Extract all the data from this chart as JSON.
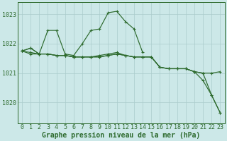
{
  "background_color": "#cce8e8",
  "grid_color": "#aacccc",
  "line_color": "#2d6a2d",
  "xlabel": "Graphe pression niveau de la mer (hPa)",
  "xlabel_fontsize": 7,
  "tick_fontsize": 6,
  "ytick_labels": [
    1020,
    1021,
    1022,
    1023
  ],
  "ylim": [
    1019.3,
    1023.4
  ],
  "xlim": [
    -0.5,
    23.5
  ],
  "xtick_labels": [
    0,
    1,
    2,
    3,
    4,
    5,
    6,
    7,
    8,
    9,
    10,
    11,
    12,
    13,
    14,
    15,
    16,
    17,
    18,
    19,
    20,
    21,
    22,
    23
  ],
  "lineA_x": [
    0,
    1,
    2,
    3,
    4,
    5,
    6,
    7,
    8,
    9,
    10,
    11,
    12,
    13,
    14
  ],
  "lineA_y": [
    1021.75,
    1021.85,
    1021.65,
    1022.45,
    1022.45,
    1021.65,
    1021.6,
    1022.0,
    1022.45,
    1022.5,
    1023.05,
    1023.1,
    1022.75,
    1022.5,
    1021.7
  ],
  "lineB_x": [
    0,
    1,
    2,
    3,
    4,
    5,
    6,
    7,
    8,
    9,
    10,
    11,
    12,
    13,
    14,
    15,
    16,
    17,
    18,
    19,
    20,
    21,
    22,
    23
  ],
  "lineB_y": [
    1021.75,
    1021.85,
    1021.65,
    1021.65,
    1021.6,
    1021.6,
    1021.55,
    1021.55,
    1021.55,
    1021.6,
    1021.65,
    1021.7,
    1021.6,
    1021.55,
    1021.55,
    1021.55,
    1021.2,
    1021.15,
    1021.15,
    1021.15,
    1021.05,
    1021.0,
    1021.0,
    1021.05
  ],
  "lineC_x": [
    0,
    1,
    2,
    3,
    4,
    5,
    6,
    7,
    8,
    9,
    10,
    11,
    12,
    13,
    14,
    15,
    16,
    17,
    18,
    19,
    20,
    21,
    22,
    23
  ],
  "lineC_y": [
    1021.75,
    1021.7,
    1021.65,
    1021.65,
    1021.6,
    1021.6,
    1021.55,
    1021.55,
    1021.55,
    1021.55,
    1021.6,
    1021.65,
    1021.6,
    1021.55,
    1021.55,
    1021.55,
    1021.2,
    1021.15,
    1021.15,
    1021.15,
    1021.05,
    1020.75,
    1020.25,
    1019.65
  ],
  "lineD_x": [
    0,
    1,
    2,
    3,
    4,
    5,
    6,
    7,
    8,
    9,
    10,
    11,
    12,
    13,
    14,
    15,
    16,
    17,
    18,
    19,
    20,
    21,
    22,
    23
  ],
  "lineD_y": [
    1021.75,
    1021.65,
    1021.65,
    1021.65,
    1021.6,
    1021.6,
    1021.55,
    1021.55,
    1021.55,
    1021.55,
    1021.6,
    1021.65,
    1021.6,
    1021.55,
    1021.55,
    1021.55,
    1021.2,
    1021.15,
    1021.15,
    1021.15,
    1021.05,
    1021.0,
    1020.25,
    1019.65
  ]
}
